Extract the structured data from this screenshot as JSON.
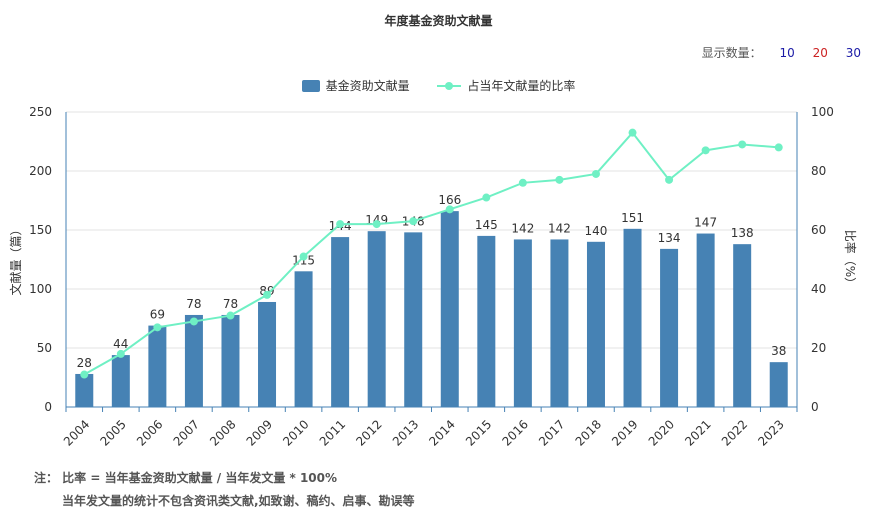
{
  "chart_data": {
    "type": "bar",
    "title": "年度基金资助文献量",
    "categories": [
      "2004",
      "2005",
      "2006",
      "2007",
      "2008",
      "2009",
      "2010",
      "2011",
      "2012",
      "2013",
      "2014",
      "2015",
      "2016",
      "2017",
      "2018",
      "2019",
      "2020",
      "2021",
      "2022",
      "2023"
    ],
    "series": [
      {
        "name": "基金资助文献量",
        "type": "bar",
        "axis": "left",
        "color": "#4682b4",
        "values": [
          28,
          44,
          69,
          78,
          78,
          89,
          115,
          144,
          149,
          148,
          166,
          145,
          142,
          142,
          140,
          151,
          134,
          147,
          138,
          38
        ]
      },
      {
        "name": "占当年文献量的比率",
        "type": "line",
        "axis": "right",
        "color": "#6ff0c4",
        "values": [
          11,
          18,
          27,
          29,
          31,
          38,
          51,
          62,
          62,
          63,
          67,
          71,
          76,
          77,
          79,
          93,
          77,
          87,
          89,
          88
        ]
      }
    ],
    "ylabel": "文献量（篇）",
    "y2label": "比率（%）",
    "ylim": [
      0,
      250
    ],
    "yticks": [
      0,
      50,
      100,
      150,
      200,
      250
    ],
    "y2lim": [
      0,
      100
    ],
    "y2ticks": [
      0,
      20,
      40,
      60,
      80,
      100
    ],
    "grid": true,
    "legend": "top-center"
  },
  "count_selector": {
    "label": "显示数量：",
    "options": [
      "10",
      "20",
      "30"
    ]
  },
  "notes": {
    "line1": "注： 比率 = 当年基金资助文献量 / 当年发文量 * 100%",
    "line2": "当年发文量的统计不包含资讯类文献,如致谢、稿约、启事、勘误等"
  }
}
